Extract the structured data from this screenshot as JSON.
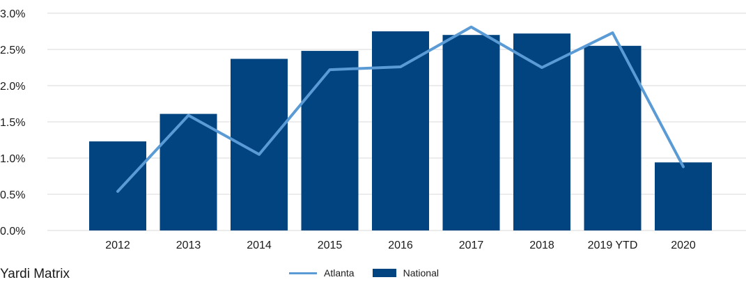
{
  "chart_data": {
    "type": "bar",
    "categories": [
      "2012",
      "2013",
      "2014",
      "2015",
      "2016",
      "2017",
      "2018",
      "2019 YTD",
      "2020"
    ],
    "series": [
      {
        "name": "National",
        "type": "bar",
        "values": [
          1.23,
          1.61,
          2.37,
          2.48,
          2.75,
          2.7,
          2.72,
          2.55,
          0.94
        ]
      },
      {
        "name": "Atlanta",
        "type": "line",
        "values": [
          0.54,
          1.59,
          1.05,
          2.22,
          2.26,
          2.81,
          2.25,
          2.73,
          0.88
        ]
      }
    ],
    "y_ticks": [
      "0.0%",
      "0.5%",
      "1.0%",
      "1.5%",
      "2.0%",
      "2.5%",
      "3.0%"
    ],
    "ylim": [
      0,
      3.0
    ],
    "grid": true,
    "legend_placement": "bottom-center",
    "colors": {
      "National": "#024480",
      "Atlanta": "#5b9bd5",
      "grid": "#d9d9d9"
    }
  },
  "legend": {
    "atlanta_label": "Atlanta",
    "national_label": "National"
  },
  "source": "Yardi Matrix"
}
